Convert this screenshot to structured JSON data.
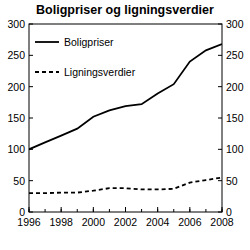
{
  "chart_data": {
    "type": "line",
    "title": "Boligpriser og ligningsverdier",
    "x": [
      1996,
      1997,
      1998,
      1999,
      2000,
      2001,
      2002,
      2003,
      2004,
      2005,
      2006,
      2007,
      2008
    ],
    "series": [
      {
        "name": "Boligpriser",
        "color": "#000000",
        "line_style": "solid",
        "values": [
          100,
          111,
          122,
          133,
          152,
          162,
          169,
          172,
          189,
          204,
          240,
          258,
          268
        ]
      },
      {
        "name": "Ligningsverdier",
        "color": "#000000",
        "line_style": "dashed",
        "values": [
          30,
          30,
          31,
          31,
          34,
          38,
          38,
          36,
          36,
          37,
          47,
          51,
          55
        ]
      }
    ],
    "xlim": [
      1996,
      2008
    ],
    "xticks": [
      1996,
      1998,
      2000,
      2002,
      2004,
      2006,
      2008
    ],
    "ylim": [
      0,
      300
    ],
    "yticks": [
      0,
      50,
      100,
      150,
      200,
      250,
      300
    ],
    "y2lim": [
      0,
      300
    ],
    "y2ticks": [
      0,
      50,
      100,
      150,
      200,
      250,
      300
    ],
    "legend": "upper-left",
    "grid": false
  }
}
